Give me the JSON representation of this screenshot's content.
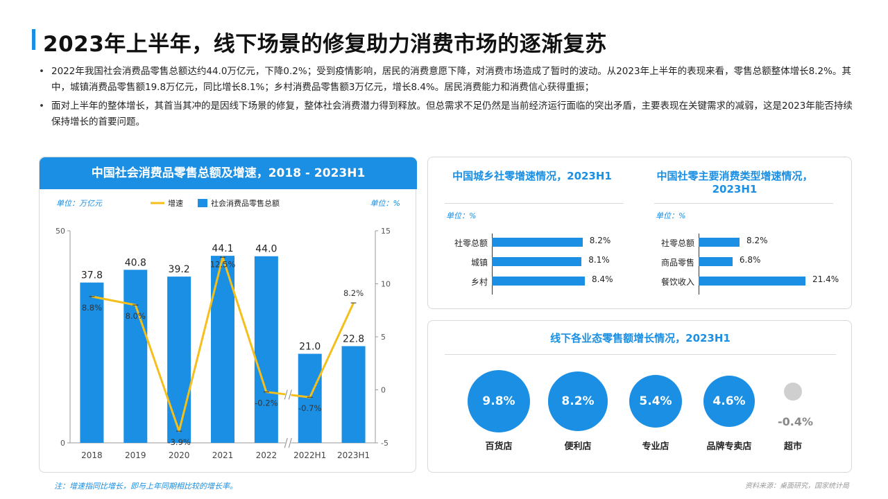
{
  "page": {
    "title": "2023年上半年，线下场景的修复助力消费市场的逐渐复苏",
    "bullets": [
      "2022年我国社会消费品零售总额达约44.0万亿元，下降0.2%；受到疫情影响，居民的消费意愿下降，对消费市场造成了暂时的波动。从2023年上半年的表现来看，零售总额整体增长8.2%。其中，城镇消费品零售额19.8万亿元，同比增长8.1%；乡村消费品零售额3万亿元，增长8.4%。居民消费能力和消费信心获得重振；",
      "面对上半年的整体增长，其首当其冲的是因线下场景的修复，整体社会消费潜力得到释放。但总需求不足仍然是当前经济运行面临的突出矛盾，主要表现在关键需求的减弱，这是2023年能否持续保持增长的首要问题。"
    ],
    "footnote": "注：增速指同比增长，即与上年同期相比较的增长率。",
    "source": "资料来源：桌面研究，国家统计局"
  },
  "colors": {
    "accent": "#1a8fe3",
    "line": "#f5bf1b",
    "muted": "#cfcfcf"
  },
  "chart_data": [
    {
      "type": "bar",
      "title": "中国社会消费品零售总额及增速，2018 - 2023H1",
      "unit_left": "单位：万亿元",
      "unit_right": "单位：%",
      "legend": [
        "增速",
        "社会消费品零售总额"
      ],
      "categories": [
        "2018",
        "2019",
        "2020",
        "2021",
        "2022",
        "2022H1",
        "2023H1"
      ],
      "series": [
        {
          "name": "社会消费品零售总额",
          "type": "bar",
          "axis": "left",
          "values": [
            37.8,
            40.8,
            39.2,
            44.1,
            44.0,
            21.0,
            22.8
          ],
          "labels": [
            "37.8",
            "40.8",
            "39.2",
            "44.1",
            "44.0",
            "21.0",
            "22.8"
          ]
        },
        {
          "name": "增速",
          "type": "line",
          "axis": "right",
          "values": [
            8.8,
            8.0,
            -3.9,
            12.5,
            -0.2,
            -0.7,
            8.2
          ],
          "labels": [
            "8.8%",
            "8.0%",
            "-3.9%",
            "12.5%",
            "-0.2%",
            "-0.7%",
            "8.2%"
          ]
        }
      ],
      "ylim_left": [
        0,
        50
      ],
      "yticks_left": [
        "0",
        "50"
      ],
      "ylim_right": [
        -5,
        15
      ],
      "yticks_right": [
        "-5",
        "0",
        "5",
        "10",
        "15"
      ],
      "axis_break": "between 2022 and 2022H1",
      "legend_position": "top-center"
    },
    {
      "type": "bar",
      "orientation": "horizontal",
      "title": "中国城乡社零增速情况，2023H1",
      "unit": "单位：%",
      "categories": [
        "社零总额",
        "城镇",
        "乡村"
      ],
      "values": [
        8.2,
        8.1,
        8.4
      ],
      "labels": [
        "8.2%",
        "8.1%",
        "8.4%"
      ]
    },
    {
      "type": "bar",
      "orientation": "horizontal",
      "title": "中国社零主要消费类型增速情况，2023H1",
      "unit": "单位：%",
      "categories": [
        "社零总额",
        "商品零售",
        "餐饮收入"
      ],
      "values": [
        8.2,
        6.8,
        21.4
      ],
      "labels": [
        "8.2%",
        "6.8%",
        "21.4%"
      ]
    },
    {
      "type": "bubble",
      "title": "线下各业态零售额增长情况，2023H1",
      "categories": [
        "百货店",
        "便利店",
        "专业店",
        "品牌专卖店",
        "超市"
      ],
      "values": [
        9.8,
        8.2,
        5.4,
        4.6,
        -0.4
      ],
      "labels": [
        "9.8%",
        "8.2%",
        "5.4%",
        "4.6%",
        "-0.4%"
      ]
    }
  ]
}
